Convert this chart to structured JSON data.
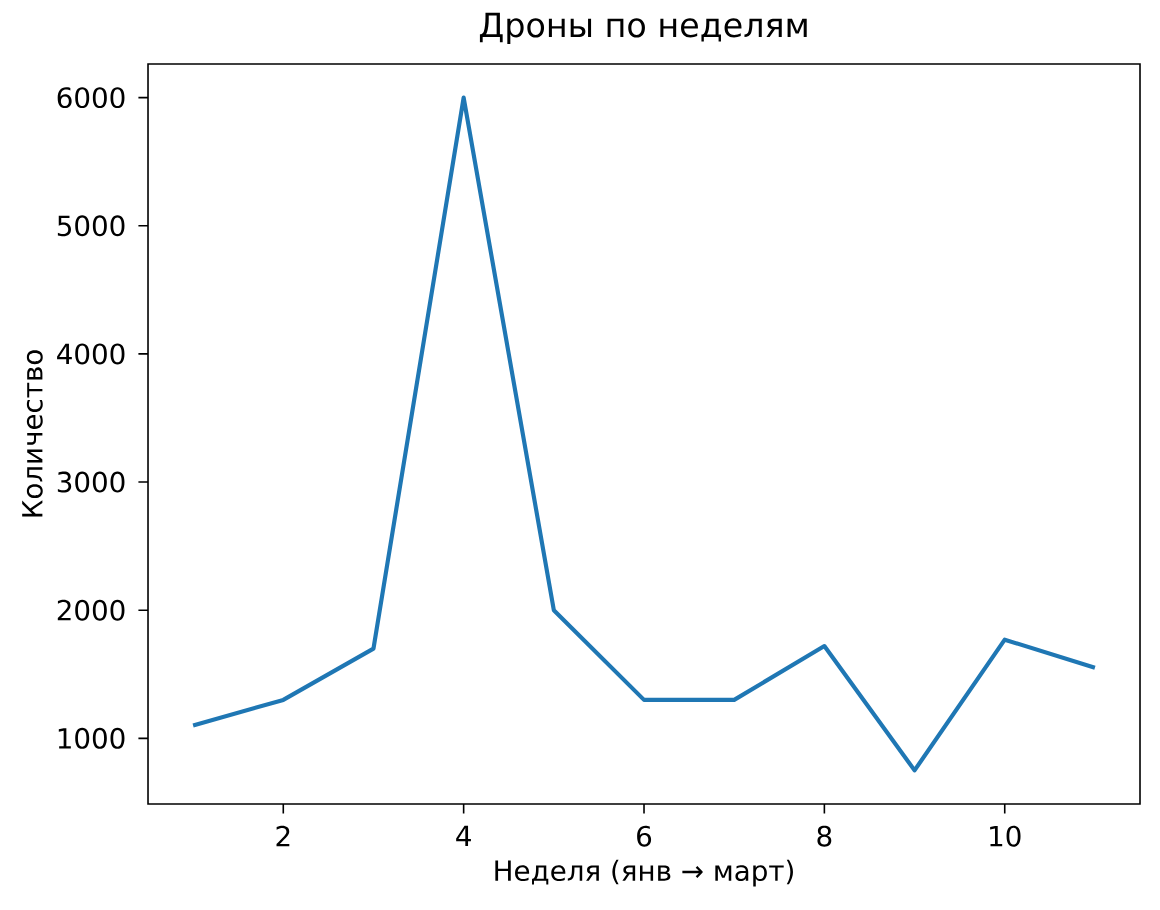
{
  "chart_data": {
    "type": "line",
    "title": "Дроны по неделям",
    "xlabel": "Неделя (янв → март)",
    "ylabel": "Количество",
    "x": [
      1,
      2,
      3,
      4,
      5,
      6,
      7,
      8,
      9,
      10,
      11
    ],
    "values": [
      1100,
      1300,
      1700,
      6000,
      2000,
      1300,
      1300,
      1720,
      750,
      1770,
      1550
    ],
    "color": "#1f77b4",
    "line_style": "solid",
    "xlim": [
      0.5,
      11.5
    ],
    "ylim": [
      487.5,
      6262.5
    ],
    "xticks": [
      2,
      4,
      6,
      8,
      10
    ],
    "yticks": [
      1000,
      2000,
      3000,
      4000,
      5000,
      6000
    ]
  }
}
